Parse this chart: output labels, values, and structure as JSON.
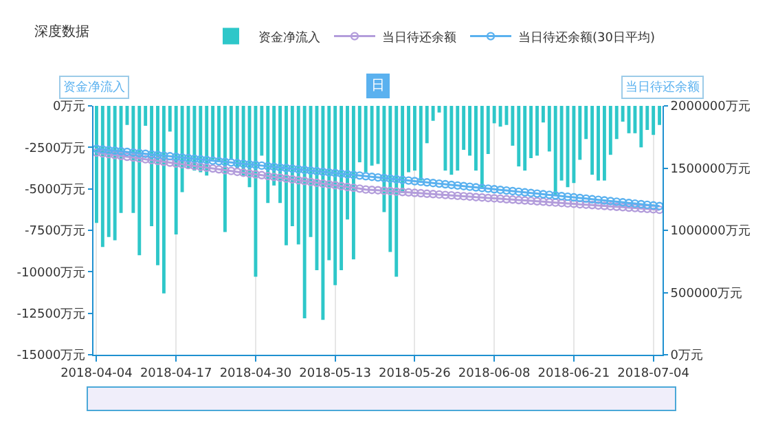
{
  "chart_data": {
    "type": "bar",
    "title": "深度数据",
    "ylabel": "资金净流入",
    "y2label": "当日待还余额",
    "annotations": [
      "日"
    ],
    "x": [
      "2018-04-04",
      "2018-04-05",
      "2018-04-06",
      "2018-04-07",
      "2018-04-08",
      "2018-04-09",
      "2018-04-10",
      "2018-04-11",
      "2018-04-12",
      "2018-04-13",
      "2018-04-14",
      "2018-04-15",
      "2018-04-16",
      "2018-04-17",
      "2018-04-18",
      "2018-04-19",
      "2018-04-20",
      "2018-04-21",
      "2018-04-22",
      "2018-04-23",
      "2018-04-24",
      "2018-04-25",
      "2018-04-26",
      "2018-04-27",
      "2018-04-28",
      "2018-04-29",
      "2018-04-30",
      "2018-05-01",
      "2018-05-02",
      "2018-05-03",
      "2018-05-04",
      "2018-05-05",
      "2018-05-06",
      "2018-05-07",
      "2018-05-08",
      "2018-05-09",
      "2018-05-10",
      "2018-05-11",
      "2018-05-12",
      "2018-05-13",
      "2018-05-14",
      "2018-05-15",
      "2018-05-16",
      "2018-05-17",
      "2018-05-18",
      "2018-05-19",
      "2018-05-20",
      "2018-05-21",
      "2018-05-22",
      "2018-05-23",
      "2018-05-24",
      "2018-05-25",
      "2018-05-26",
      "2018-05-27",
      "2018-05-28",
      "2018-05-29",
      "2018-05-30",
      "2018-05-31",
      "2018-06-01",
      "2018-06-02",
      "2018-06-03",
      "2018-06-04",
      "2018-06-05",
      "2018-06-06",
      "2018-06-07",
      "2018-06-08",
      "2018-06-09",
      "2018-06-10",
      "2018-06-11",
      "2018-06-12",
      "2018-06-13",
      "2018-06-14",
      "2018-06-15",
      "2018-06-16",
      "2018-06-17",
      "2018-06-18",
      "2018-06-19",
      "2018-06-20",
      "2018-06-21",
      "2018-06-22",
      "2018-06-23",
      "2018-06-24",
      "2018-06-25",
      "2018-06-26",
      "2018-06-27",
      "2018-06-28",
      "2018-06-29",
      "2018-06-30",
      "2018-07-01",
      "2018-07-02",
      "2018-07-03",
      "2018-07-04",
      "2018-07-05"
    ],
    "series": [
      {
        "name": "资金净流入",
        "color": "#2ec7c9",
        "values": [
          -7050,
          -8500,
          -7900,
          -8100,
          -6450,
          -1150,
          -6450,
          -9000,
          -1200,
          -7250,
          -9600,
          -11300,
          -1550,
          -7750,
          -5200,
          -3750,
          -3900,
          -4000,
          -4200,
          -3250,
          -3400,
          -7600,
          -3250,
          -3750,
          -4250,
          -4900,
          -10300,
          -3000,
          -5850,
          -4800,
          -5850,
          -8400,
          -7250,
          -8350,
          -12800,
          -7900,
          -9900,
          -12900,
          -9300,
          -10800,
          -9900,
          -6850,
          -9250,
          -3400,
          -4000,
          -3600,
          -3500,
          -6400,
          -8800,
          -10300,
          -5250,
          -4000,
          -3900,
          -4500,
          -2250,
          -900,
          -400,
          -3900,
          -4150,
          -3900,
          -2650,
          -3000,
          -3900,
          -5000,
          -2900,
          -1050,
          -1250,
          -1150,
          -2400,
          -3650,
          -3900,
          -3150,
          -3000,
          -1000,
          -2750,
          -5400,
          -4500,
          -4900,
          -4650,
          -3250,
          -2000,
          -4150,
          -4500,
          -4500,
          -2950,
          -2000,
          -950,
          -1650,
          -1650,
          -2500,
          -1450,
          -1750,
          -1150
        ]
      },
      {
        "name": "当日待还余额",
        "type": "line",
        "axis": "y2",
        "color": "#b39ddb",
        "marker": "circle",
        "line_style": "solid",
        "values": [
          1625000,
          1618000,
          1612000,
          1605000,
          1598000,
          1591000,
          1585000,
          1578000,
          1571000,
          1564000,
          1558000,
          1551000,
          1544000,
          1537000,
          1531000,
          1524000,
          1517000,
          1510000,
          1504000,
          1497000,
          1490000,
          1483000,
          1477000,
          1470000,
          1463000,
          1456000,
          1450000,
          1443000,
          1436000,
          1429000,
          1423000,
          1416000,
          1409000,
          1402000,
          1396000,
          1389000,
          1382000,
          1375000,
          1369000,
          1362000,
          1355000,
          1348000,
          1342000,
          1335000,
          1328000,
          1325000,
          1322000,
          1318000,
          1315000,
          1311000,
          1308000,
          1305000,
          1301000,
          1298000,
          1294000,
          1291000,
          1288000,
          1284000,
          1281000,
          1277000,
          1274000,
          1271000,
          1267000,
          1264000,
          1260000,
          1257000,
          1254000,
          1250000,
          1247000,
          1243000,
          1240000,
          1237000,
          1233000,
          1230000,
          1226000,
          1223000,
          1220000,
          1216000,
          1213000,
          1209000,
          1206000,
          1203000,
          1199000,
          1196000,
          1192000,
          1189000,
          1186000,
          1182000,
          1179000,
          1175000,
          1172000,
          1169000,
          1165000
        ]
      },
      {
        "name": "当日待还余额(30日平均)",
        "type": "line",
        "axis": "y2",
        "color": "#5ab1ef",
        "marker": "circle",
        "line_style": "solid",
        "values": [
          1655000,
          1650000,
          1645000,
          1640000,
          1635000,
          1630000,
          1625000,
          1620000,
          1615000,
          1610000,
          1605000,
          1600000,
          1595000,
          1590000,
          1585000,
          1580000,
          1575000,
          1570000,
          1565000,
          1560000,
          1555000,
          1550000,
          1545000,
          1540000,
          1535000,
          1530000,
          1525000,
          1520000,
          1515000,
          1510000,
          1505000,
          1500000,
          1495000,
          1490000,
          1485000,
          1480000,
          1475000,
          1470000,
          1465000,
          1460000,
          1455000,
          1450000,
          1445000,
          1440000,
          1435000,
          1430000,
          1425000,
          1420000,
          1415000,
          1410000,
          1405000,
          1400000,
          1395000,
          1390000,
          1385000,
          1380000,
          1375000,
          1370000,
          1365000,
          1360000,
          1355000,
          1350000,
          1345000,
          1340000,
          1335000,
          1330000,
          1325000,
          1320000,
          1315000,
          1310000,
          1305000,
          1300000,
          1295000,
          1290000,
          1285000,
          1280000,
          1275000,
          1270000,
          1265000,
          1260000,
          1255000,
          1250000,
          1245000,
          1240000,
          1235000,
          1230000,
          1225000,
          1220000,
          1215000,
          1210000,
          1205000,
          1200000,
          1195000
        ]
      }
    ],
    "xlim": [
      "2018-04-03T12:00",
      "2018-07-05T12:00"
    ],
    "xticks": [
      "2018-04-04",
      "2018-04-17",
      "2018-04-30",
      "2018-05-13",
      "2018-05-26",
      "2018-06-08",
      "2018-06-21",
      "2018-07-04"
    ],
    "ylim": [
      -15000,
      0
    ],
    "yticks": [
      {
        "value": 0,
        "label": "0万元"
      },
      {
        "value": -2500,
        "label": "-2500万元"
      },
      {
        "value": -5000,
        "label": "-5000万元"
      },
      {
        "value": -7500,
        "label": "-7500万元"
      },
      {
        "value": -10000,
        "label": "-10000万元"
      },
      {
        "value": -12500,
        "label": "-12500万元"
      },
      {
        "value": -15000,
        "label": "-15000万元"
      }
    ],
    "y2lim": [
      0,
      2000000
    ],
    "y2ticks": [
      {
        "value": 0,
        "label": "0万元"
      },
      {
        "value": 500000,
        "label": "500000万元"
      },
      {
        "value": 1000000,
        "label": "1000000万元"
      },
      {
        "value": 1500000,
        "label": "1500000万元"
      },
      {
        "value": 2000000,
        "label": "2000000万元"
      }
    ],
    "grid": "x",
    "legend": "top right"
  }
}
